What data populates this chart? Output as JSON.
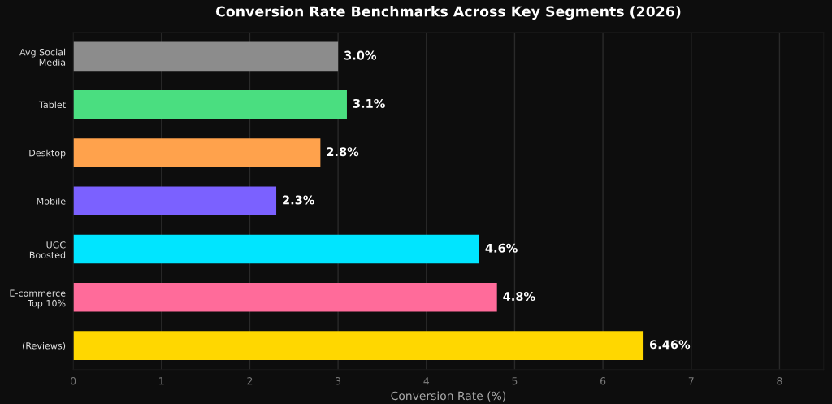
{
  "chart_data": {
    "type": "bar",
    "orientation": "horizontal",
    "title": "Conversion Rate Benchmarks Across Key Segments (2026)",
    "xlabel": "Conversion Rate (%)",
    "categories": [
      "Avg Social\nMedia",
      "Tablet",
      "Desktop",
      "Mobile",
      "UGC\nBoosted",
      "E-commerce\nTop 10%",
      "(Reviews)"
    ],
    "values": [
      3.0,
      3.1,
      2.8,
      2.3,
      4.6,
      4.8,
      6.46
    ],
    "colors": [
      "#8c8c8c",
      "#4ade80",
      "#ffa24c",
      "#7b61ff",
      "#00e5ff",
      "#ff6b9a",
      "#ffd700"
    ],
    "value_labels": [
      "3.0%",
      "3.1%",
      "2.8%",
      "2.3%",
      "4.6%",
      "4.8%",
      "6.46%"
    ],
    "xlim": [
      0,
      8.5
    ],
    "xticks": [
      0,
      1,
      2,
      3,
      4,
      5,
      6,
      7,
      8
    ],
    "grid": "x"
  }
}
